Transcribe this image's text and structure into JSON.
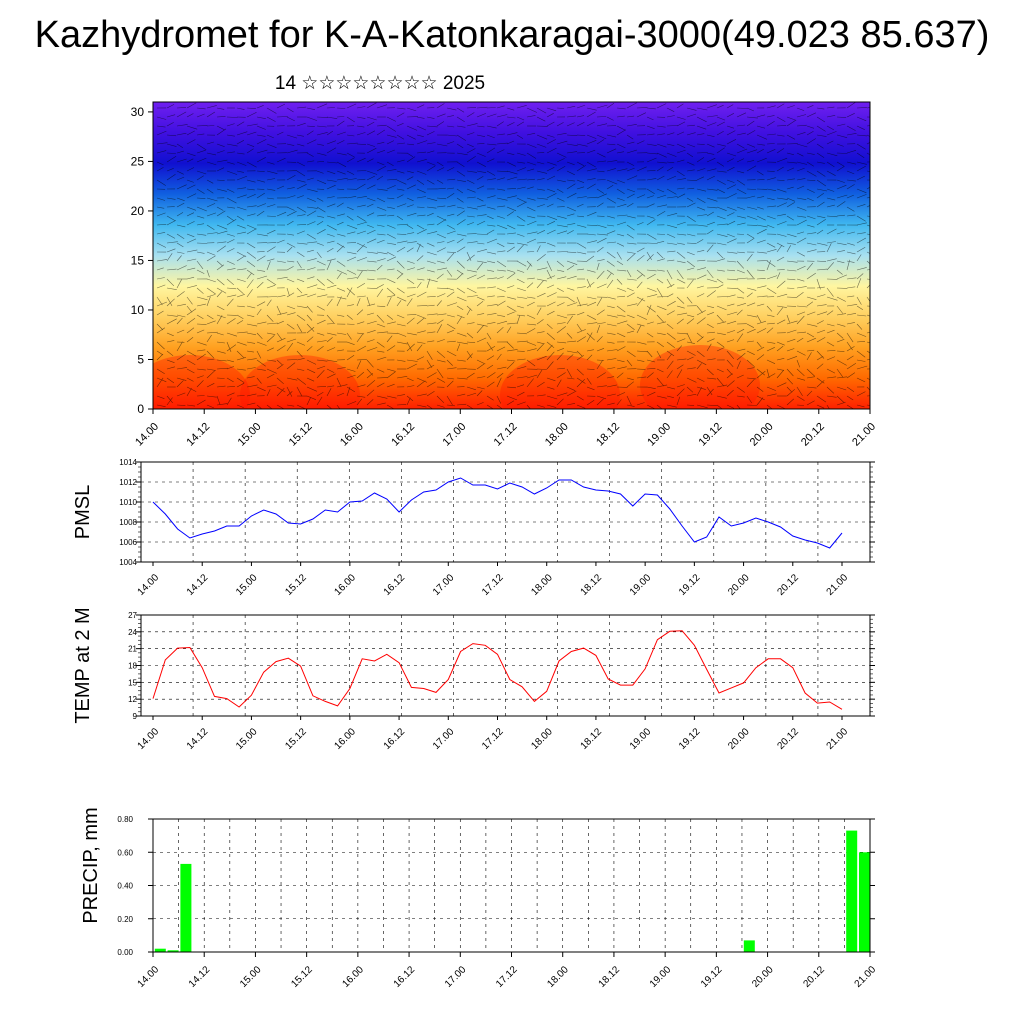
{
  "title": "Kazhydromet for K-A-Katonkaragai-3000(49.023 85.637)",
  "subtitle": "14 ☆☆☆☆☆☆☆☆ 2025",
  "colors": {
    "pmsl_line": "#0000ff",
    "temp_line": "#ff0000",
    "precip_bar": "#00ff00",
    "grid": "#000000",
    "cross_section": [
      "#ff2000",
      "#ff6a00",
      "#ffa020",
      "#ffd060",
      "#fff6a0",
      "#a8e0f0",
      "#40b8f0",
      "#1060e0",
      "#1010d0",
      "#4010e0",
      "#7020f0"
    ]
  },
  "chart_data": [
    {
      "id": "cross-section",
      "type": "heatmap",
      "title": "",
      "xlabel": "",
      "ylabel": "",
      "x_ticks": [
        "14.00",
        "14.12",
        "15.00",
        "15.12",
        "16.00",
        "16.12",
        "17.00",
        "17.12",
        "18.00",
        "18.12",
        "19.00",
        "19.12",
        "20.00",
        "20.12",
        "21.00"
      ],
      "y_ticks": [
        0,
        5,
        10,
        15,
        20,
        25,
        30
      ],
      "ylim": [
        0,
        31
      ],
      "colormap_order": "warm at low levels to cold at high levels"
    },
    {
      "id": "pmsl",
      "type": "line",
      "ylabel": "PMSL",
      "ylim": [
        1004,
        1014
      ],
      "y_ticks": [
        1004,
        1006,
        1008,
        1010,
        1012,
        1014
      ],
      "x_ticks": [
        "14.00",
        "14.12",
        "15.00",
        "15.12",
        "16.00",
        "16.12",
        "17.00",
        "17.12",
        "18.00",
        "18.12",
        "19.00",
        "19.12",
        "20.00",
        "20.12",
        "21.00"
      ],
      "x": [
        0,
        3,
        6,
        9,
        12,
        15,
        18,
        21,
        24,
        27,
        30,
        33,
        36,
        39,
        42,
        45,
        48,
        51,
        54,
        57,
        60,
        63,
        66,
        69,
        72,
        75,
        78,
        81,
        84,
        87,
        90,
        93,
        96,
        99,
        102,
        105,
        108,
        111,
        114,
        117,
        120,
        123,
        126,
        129,
        132,
        135,
        138,
        141,
        144,
        147,
        150,
        153,
        156,
        159,
        162,
        165,
        168
      ],
      "series": [
        {
          "values": [
            1010.0,
            1008.8,
            1007.3,
            1006.4,
            1006.8,
            1007.1,
            1007.6,
            1007.6,
            1008.6,
            1009.2,
            1008.8,
            1007.9,
            1007.8,
            1008.3,
            1009.2,
            1009.0,
            1010.0,
            1010.1,
            1010.9,
            1010.3,
            1009.0,
            1010.2,
            1011.0,
            1011.2,
            1012.0,
            1012.4,
            1011.7,
            1011.7,
            1011.3,
            1011.9,
            1011.5,
            1010.8,
            1011.4,
            1012.2,
            1012.2,
            1011.5,
            1011.2,
            1011.1,
            1010.8,
            1009.6,
            1010.8,
            1010.7,
            1009.3,
            1007.6,
            1006.0,
            1006.5,
            1008.5,
            1007.6,
            1007.9,
            1008.4,
            1008.0,
            1007.5,
            1006.6,
            1006.2,
            1005.9,
            1005.4,
            1006.9
          ]
        }
      ]
    },
    {
      "id": "temp",
      "type": "line",
      "ylabel": "TEMP at 2 M",
      "ylim": [
        9,
        27
      ],
      "y_ticks": [
        9,
        12,
        15,
        18,
        21,
        24,
        27
      ],
      "x_ticks": [
        "14.00",
        "14.12",
        "15.00",
        "15.12",
        "16.00",
        "16.12",
        "17.00",
        "17.12",
        "18.00",
        "18.12",
        "19.00",
        "19.12",
        "20.00",
        "20.12",
        "21.00"
      ],
      "x": [
        0,
        3,
        6,
        9,
        12,
        15,
        18,
        21,
        24,
        27,
        30,
        33,
        36,
        39,
        42,
        45,
        48,
        51,
        54,
        57,
        60,
        63,
        66,
        69,
        72,
        75,
        78,
        81,
        84,
        87,
        90,
        93,
        96,
        99,
        102,
        105,
        108,
        111,
        114,
        117,
        120,
        123,
        126,
        129,
        132,
        135,
        138,
        141,
        144,
        147,
        150,
        153,
        156,
        159,
        162,
        165,
        168
      ],
      "series": [
        {
          "values": [
            12.1,
            19.0,
            21.1,
            21.2,
            17.6,
            12.5,
            12.1,
            10.6,
            12.7,
            16.8,
            18.7,
            19.3,
            17.9,
            12.6,
            11.6,
            10.8,
            13.9,
            19.2,
            18.8,
            20.0,
            18.5,
            14.1,
            13.9,
            13.2,
            15.5,
            20.5,
            21.9,
            21.6,
            20.0,
            15.5,
            14.2,
            11.6,
            13.4,
            18.8,
            20.5,
            21.1,
            19.8,
            15.6,
            14.5,
            14.5,
            17.4,
            22.6,
            24.1,
            24.2,
            21.6,
            17.3,
            13.1,
            14.0,
            14.9,
            17.6,
            19.2,
            19.2,
            17.6,
            13.1,
            11.3,
            11.5,
            10.2
          ]
        }
      ]
    },
    {
      "id": "precip",
      "type": "bar",
      "ylabel": "PRECIP, mm",
      "ylim": [
        0,
        0.8
      ],
      "y_ticks": [
        "0.00",
        "0.20",
        "0.40",
        "0.60",
        "0.80"
      ],
      "x_ticks": [
        "14.00",
        "14.12",
        "15.00",
        "15.12",
        "16.00",
        "16.12",
        "17.00",
        "17.12",
        "18.00",
        "18.12",
        "19.00",
        "19.12",
        "20.00",
        "20.12",
        "21.00"
      ],
      "bars": [
        {
          "x": 3,
          "value": 0.02
        },
        {
          "x": 6,
          "value": 0.01
        },
        {
          "x": 9,
          "value": 0.53
        },
        {
          "x": 141,
          "value": 0.07
        },
        {
          "x": 165,
          "value": 0.73
        },
        {
          "x": 168,
          "value": 0.6
        }
      ]
    }
  ]
}
